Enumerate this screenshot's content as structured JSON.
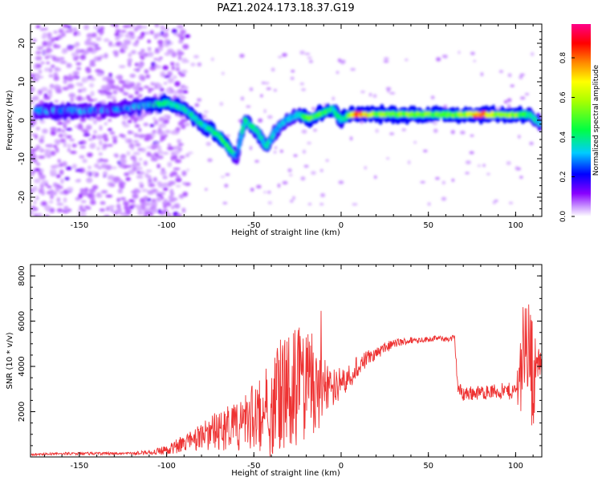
{
  "figure": {
    "title": "PAZ1.2024.173.18.37.G19"
  },
  "chart_data": [
    {
      "type": "heatmap",
      "xlabel": "Height of straight line (km)",
      "ylabel": "Frequency (Hz)",
      "xlim": [
        -178,
        115
      ],
      "ylim": [
        -25,
        25
      ],
      "x_ticks": [
        -150,
        -100,
        -50,
        0,
        50,
        100
      ],
      "y_ticks": [
        -20,
        -10,
        0,
        10,
        20
      ],
      "colorbar": {
        "label": "Normalized spectral amplitude",
        "range": [
          0,
          0.97
        ],
        "ticks": [
          0.0,
          0.2,
          0.4,
          0.6,
          0.8
        ],
        "colormap": [
          "#ffffff",
          "#cc99ff",
          "#5500ee",
          "#0000ff",
          "#00ffff",
          "#00ff00",
          "#ffff00",
          "#ff8800",
          "#ff0000",
          "#ff0088"
        ]
      },
      "ridge": [
        {
          "x": -175,
          "f": 2.5,
          "a": 0.3
        },
        {
          "x": -160,
          "f": 2.5,
          "a": 0.35
        },
        {
          "x": -145,
          "f": 2.5,
          "a": 0.3
        },
        {
          "x": -125,
          "f": 3.0,
          "a": 0.3
        },
        {
          "x": -110,
          "f": 4.0,
          "a": 0.4
        },
        {
          "x": -100,
          "f": 4.5,
          "a": 0.45
        },
        {
          "x": -90,
          "f": 3.0,
          "a": 0.4
        },
        {
          "x": -80,
          "f": -1.0,
          "a": 0.4
        },
        {
          "x": -70,
          "f": -4.0,
          "a": 0.45
        },
        {
          "x": -65,
          "f": -7.0,
          "a": 0.5
        },
        {
          "x": -60,
          "f": -9.5,
          "a": 0.3
        },
        {
          "x": -55,
          "f": 0.0,
          "a": 0.4
        },
        {
          "x": -48,
          "f": -3.0,
          "a": 0.4
        },
        {
          "x": -43,
          "f": -7.0,
          "a": 0.4
        },
        {
          "x": -38,
          "f": -3.0,
          "a": 0.35
        },
        {
          "x": -32,
          "f": 0.0,
          "a": 0.35
        },
        {
          "x": -25,
          "f": 1.5,
          "a": 0.35
        },
        {
          "x": -18,
          "f": 0.5,
          "a": 0.55
        },
        {
          "x": -10,
          "f": 2.0,
          "a": 0.45
        },
        {
          "x": -5,
          "f": 3.0,
          "a": 0.45
        },
        {
          "x": 0,
          "f": 0.0,
          "a": 0.4
        },
        {
          "x": 5,
          "f": 1.5,
          "a": 0.55
        },
        {
          "x": 10,
          "f": 1.5,
          "a": 0.9
        },
        {
          "x": 20,
          "f": 1.5,
          "a": 0.6
        },
        {
          "x": 30,
          "f": 1.5,
          "a": 0.55
        },
        {
          "x": 40,
          "f": 1.5,
          "a": 0.6
        },
        {
          "x": 50,
          "f": 1.5,
          "a": 0.55
        },
        {
          "x": 60,
          "f": 1.5,
          "a": 0.55
        },
        {
          "x": 70,
          "f": 1.5,
          "a": 0.6
        },
        {
          "x": 80,
          "f": 1.5,
          "a": 0.9
        },
        {
          "x": 90,
          "f": 1.5,
          "a": 0.55
        },
        {
          "x": 100,
          "f": 1.5,
          "a": 0.6
        },
        {
          "x": 108,
          "f": 1.5,
          "a": 0.4
        },
        {
          "x": 114,
          "f": -1.0,
          "a": 0.35
        }
      ]
    },
    {
      "type": "line",
      "xlabel": "Height of straight line (km)",
      "ylabel": "SNR (10 * v/v)",
      "xlim": [
        -178,
        115
      ],
      "ylim": [
        0,
        8500
      ],
      "x_ticks": [
        -150,
        -100,
        -50,
        0,
        50,
        100
      ],
      "y_ticks": [
        2000,
        4000,
        6000,
        8000
      ],
      "color": "#ee3333",
      "series": [
        {
          "x": [
            -178,
            -160,
            -140,
            -120,
            -110,
            -100,
            -90,
            -80,
            -70,
            -60,
            -50,
            -40,
            -35,
            -30,
            -25,
            -20,
            -17,
            -15,
            -10,
            -5,
            0,
            10,
            20,
            30,
            40,
            50,
            55,
            60,
            65,
            67,
            70,
            80,
            90,
            100,
            103,
            106,
            108,
            110,
            112,
            115
          ],
          "y": [
            100,
            150,
            150,
            150,
            200,
            300,
            600,
            900,
            1200,
            1300,
            1800,
            2200,
            2600,
            3000,
            3200,
            3100,
            3400,
            2600,
            3200,
            3100,
            3300,
            4000,
            4600,
            5000,
            5150,
            5200,
            5250,
            5200,
            5250,
            3000,
            2800,
            2850,
            2900,
            2900,
            4000,
            5500,
            4500,
            3500,
            4200,
            4000
          ],
          "noise": [
            50,
            60,
            60,
            60,
            120,
            200,
            400,
            600,
            900,
            1100,
            1500,
            2400,
            2600,
            3000,
            2600,
            2400,
            2200,
            2000,
            1200,
            900,
            700,
            500,
            300,
            200,
            150,
            120,
            120,
            120,
            150,
            300,
            350,
            300,
            350,
            400,
            2000,
            2500,
            2600,
            2500,
            800,
            600
          ]
        }
      ]
    }
  ]
}
